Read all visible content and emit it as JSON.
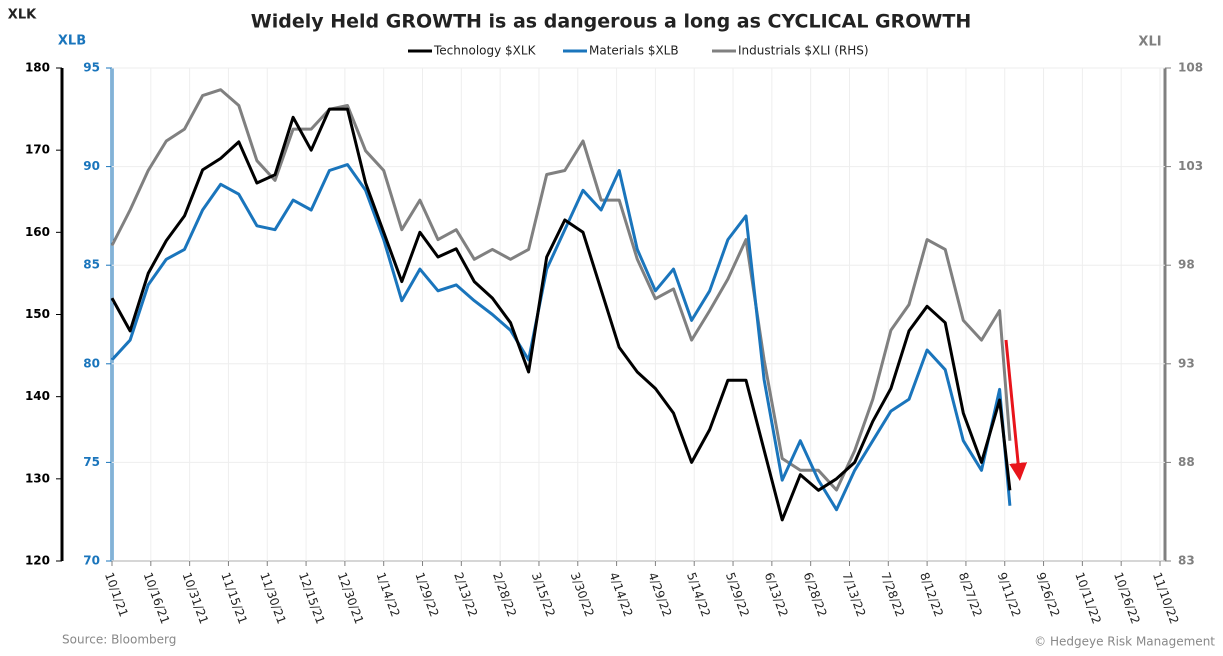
{
  "chart_data": {
    "type": "line",
    "title": "Widely Held GROWTH is as dangerous a long as CYCLICAL GROWTH",
    "ylabel": "XLK",
    "y3label": "XLB",
    "y2label": "XLI",
    "source": "Source: Bloomberg",
    "credit": "© Hedgeye Risk Management",
    "x": [
      "10/1/21",
      "10/8/21",
      "10/15/21",
      "10/22/21",
      "10/29/21",
      "11/5/21",
      "11/12/21",
      "11/19/21",
      "11/26/21",
      "12/3/21",
      "12/10/21",
      "12/17/21",
      "12/24/21",
      "12/31/21",
      "1/7/22",
      "1/14/22",
      "1/21/22",
      "1/28/22",
      "2/4/22",
      "2/11/22",
      "2/18/22",
      "2/25/22",
      "3/4/22",
      "3/11/22",
      "3/18/22",
      "3/25/22",
      "4/1/22",
      "4/8/22",
      "4/15/22",
      "4/22/22",
      "4/29/22",
      "5/6/22",
      "5/13/22",
      "5/20/22",
      "5/27/22",
      "6/3/22",
      "6/10/22",
      "6/17/22",
      "6/24/22",
      "7/1/22",
      "7/8/22",
      "7/15/22",
      "7/22/22",
      "7/29/22",
      "8/5/22",
      "8/12/22",
      "8/19/22",
      "8/26/22",
      "9/2/22",
      "9/9/22",
      "9/13/22"
    ],
    "xlim": [
      "10/1/21",
      "11/10/22"
    ],
    "xticks": [
      "10/1/21",
      "10/16/21",
      "10/31/21",
      "11/15/21",
      "11/30/21",
      "12/15/21",
      "12/30/21",
      "1/14/22",
      "1/29/22",
      "2/13/22",
      "2/28/22",
      "3/15/22",
      "3/30/22",
      "4/14/22",
      "4/29/22",
      "5/14/22",
      "5/29/22",
      "6/13/22",
      "6/28/22",
      "7/13/22",
      "7/28/22",
      "8/12/22",
      "8/27/22",
      "9/11/22",
      "9/26/22",
      "10/11/22",
      "10/26/22",
      "11/10/22"
    ],
    "ylim": [
      120,
      180
    ],
    "yticks": [
      120,
      130,
      140,
      150,
      160,
      170,
      180
    ],
    "y3lim": [
      70,
      95
    ],
    "y3ticks": [
      70,
      75,
      80,
      85,
      90,
      95
    ],
    "y2lim": [
      83,
      108
    ],
    "y2ticks": [
      83,
      88,
      93,
      98,
      103,
      108
    ],
    "grid": true,
    "series": [
      {
        "name": "Technology $XLK",
        "color": "#000000",
        "axis": "y",
        "values": [
          152,
          148,
          155,
          159,
          162,
          167.6,
          169,
          171,
          166,
          167,
          174,
          170,
          175,
          175,
          166,
          160,
          154,
          160,
          157,
          158,
          154,
          152,
          149,
          143,
          157,
          161.5,
          160,
          153,
          146,
          143,
          141,
          138,
          132,
          136,
          142,
          142,
          133.5,
          125,
          130.5,
          128.6,
          130,
          132,
          137,
          141,
          148,
          151,
          149,
          138,
          132,
          139.6,
          128.6
        ]
      },
      {
        "name": "Materials $XLB",
        "color": "#1a75bc",
        "axis": "y3",
        "values": [
          80.2,
          81.2,
          84,
          85.3,
          85.8,
          87.8,
          89.1,
          88.6,
          87,
          86.8,
          88.3,
          87.8,
          89.8,
          90.1,
          88.8,
          86.3,
          83.2,
          84.8,
          83.7,
          84,
          83.2,
          82.5,
          81.7,
          80.2,
          84.8,
          86.8,
          88.8,
          87.8,
          89.8,
          85.8,
          83.7,
          84.8,
          82.2,
          83.7,
          86.3,
          87.5,
          79.2,
          74.1,
          76.1,
          74.1,
          72.6,
          74.6,
          76.1,
          77.6,
          78.2,
          80.7,
          79.7,
          76.1,
          74.6,
          78.7,
          72.8
        ]
      },
      {
        "name": "Industrials $XLI (RHS)",
        "color": "#808080",
        "axis": "y2",
        "values": [
          99,
          100.8,
          102.8,
          104.3,
          104.9,
          106.6,
          106.9,
          106.1,
          103.3,
          102.3,
          104.9,
          104.9,
          105.9,
          106.1,
          103.8,
          102.8,
          99.8,
          101.3,
          99.3,
          99.8,
          98.3,
          98.8,
          98.3,
          98.8,
          102.6,
          102.8,
          104.3,
          101.3,
          101.3,
          98.3,
          96.3,
          96.8,
          94.2,
          95.7,
          97.3,
          99.3,
          93.2,
          88.2,
          87.6,
          87.6,
          86.6,
          88.6,
          91.2,
          94.7,
          96,
          99.3,
          98.8,
          95.2,
          94.2,
          95.7,
          89.1
        ]
      }
    ]
  }
}
